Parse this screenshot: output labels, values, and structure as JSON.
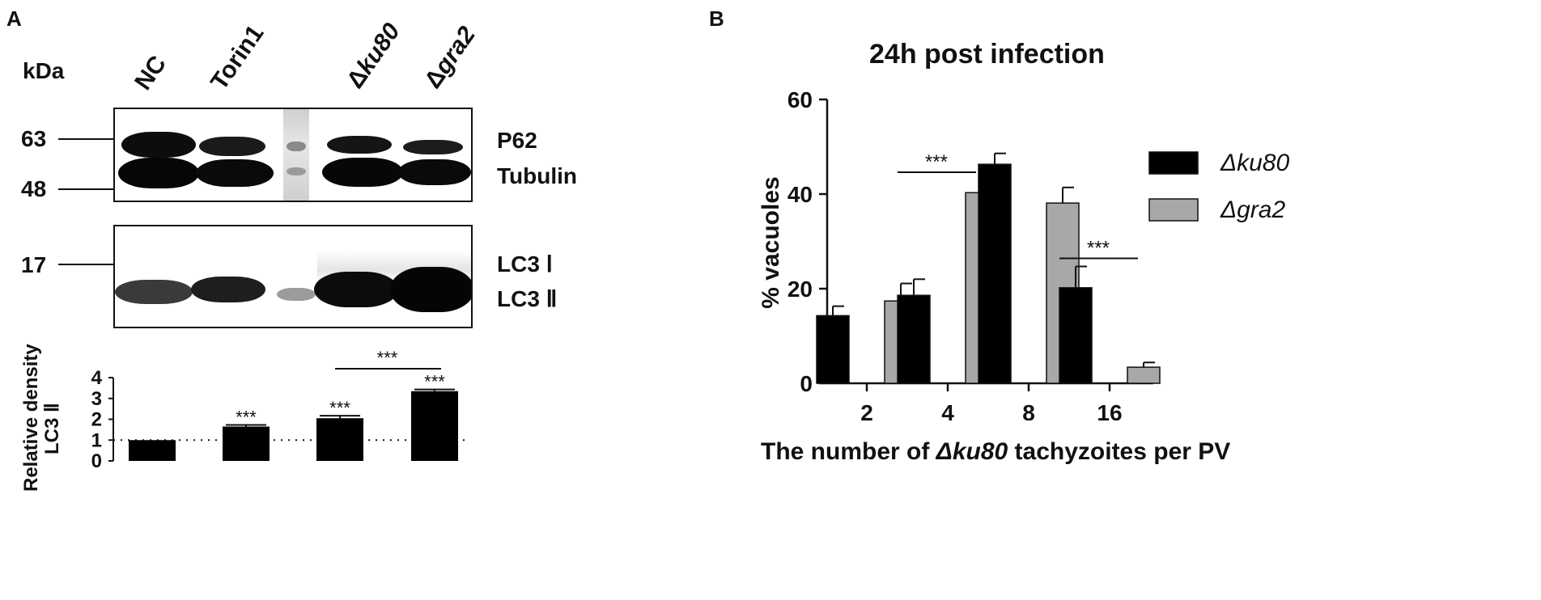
{
  "panel_a": {
    "letter": "A",
    "kda_label": "kDa",
    "lanes": [
      {
        "prefix": "",
        "name": "NC"
      },
      {
        "prefix": "",
        "name": "Torin1"
      },
      {
        "prefix": "Δ",
        "name": "ku80"
      },
      {
        "prefix": "Δ",
        "name": "gra2"
      }
    ],
    "markers": [
      "63",
      "48",
      "17"
    ],
    "band_labels": {
      "p62": "P62",
      "tubulin": "Tubulin",
      "lc3_1": "LC3 Ⅰ",
      "lc3_2": "LC3 Ⅱ"
    }
  },
  "panel_b": {
    "letter": "B",
    "title": "24h post infection",
    "ylabel": "% vacuoles",
    "xlabel_parts": [
      "The number of ",
      "Δku80",
      " tachyzoites per PV"
    ]
  },
  "chart_data": [
    {
      "type": "bar",
      "ylabel_lines": [
        "Relative density",
        "LC3 Ⅱ"
      ],
      "categories": [
        "NC",
        "Torin1",
        "Δku80",
        "Δgra2"
      ],
      "values": [
        1.0,
        1.65,
        2.05,
        3.35
      ],
      "errors": [
        0.0,
        0.08,
        0.12,
        0.08
      ],
      "ylim": [
        0,
        4
      ],
      "yticks": [
        "0",
        "1",
        "2",
        "3",
        "4"
      ],
      "reference_line": 1,
      "significance": [
        "",
        "***",
        "***",
        "***"
      ],
      "bracket": {
        "from": "Δku80",
        "to": "Δgra2",
        "label": "***"
      },
      "bar_color": "#000000"
    },
    {
      "type": "bar",
      "title": "24h post infection",
      "xlabel": "The number of Δku80 tachyzoites per PV",
      "ylabel": "% vacuoles",
      "categories": [
        "2",
        "4",
        "8",
        "16"
      ],
      "ylim": [
        0,
        60
      ],
      "yticks": [
        "0",
        "20",
        "40",
        "60"
      ],
      "series": [
        {
          "name": "Δku80",
          "color": "#000000",
          "values": [
            14.3,
            18.6,
            46.3,
            20.2
          ],
          "errors": [
            2.0,
            3.4,
            2.3,
            4.5
          ]
        },
        {
          "name": "Δgra2",
          "color": "#a8a8a8",
          "values": [
            17.4,
            40.3,
            38.1,
            3.4
          ],
          "errors": [
            3.7,
            2.6,
            3.3,
            1.0
          ]
        }
      ],
      "significance": [
        {
          "category": "4",
          "label": "***"
        },
        {
          "category": "16",
          "label": "***"
        }
      ],
      "legend": "right"
    }
  ]
}
